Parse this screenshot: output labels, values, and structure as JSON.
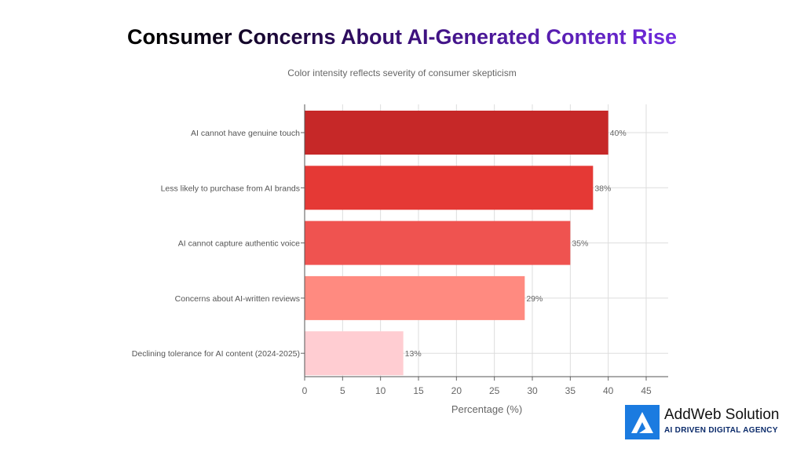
{
  "title": "Consumer Concerns About AI-Generated Content Rise",
  "subtitle": "Color intensity reflects severity of consumer skepticism",
  "chart_data": {
    "type": "bar",
    "orientation": "horizontal",
    "title": "Consumer Concerns About AI-Generated Content Rise",
    "subtitle": "Color intensity reflects severity of consumer skepticism",
    "categories": [
      "AI cannot have genuine touch",
      "Less likely to purchase from AI brands",
      "AI cannot capture authentic voice",
      "Concerns about AI-written reviews",
      "Declining tolerance for AI content (2024-2025)"
    ],
    "values": [
      40,
      38,
      35,
      29,
      13
    ],
    "data_labels": [
      "40%",
      "38%",
      "35%",
      "29%",
      "13%"
    ],
    "colors": [
      "#c62828",
      "#e53935",
      "#ef5350",
      "#ff8a80",
      "#ffcdd2"
    ],
    "xlabel": "Percentage (%)",
    "ylabel": "",
    "xlim": [
      0,
      48
    ],
    "xticks": [
      0,
      5,
      10,
      15,
      20,
      25,
      30,
      35,
      40,
      45
    ],
    "grid": true
  },
  "logo": {
    "name": "AddWeb Solution",
    "tagline": "AI DRIVEN DIGITAL AGENCY",
    "color": "#1b7be0"
  }
}
